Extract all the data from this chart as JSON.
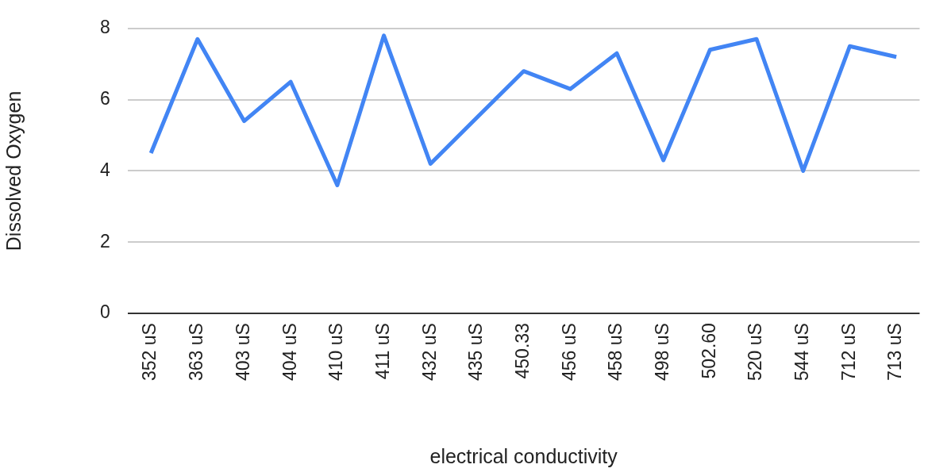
{
  "chart_data": {
    "type": "line",
    "xlabel": "electrical conductivity",
    "ylabel": "Dissolved Oxygen",
    "categories": [
      "352 uS",
      "363 uS",
      "403 uS",
      "404 uS",
      "410 uS",
      "411 uS",
      "432 uS",
      "435 uS",
      "450.33",
      "456 uS",
      "458 uS",
      "498 uS",
      "502.60",
      "520 uS",
      "544 uS",
      "712 uS",
      "713 uS"
    ],
    "series": [
      {
        "color": "#4285f4",
        "values": [
          4.5,
          7.7,
          5.4,
          6.5,
          3.6,
          7.8,
          4.2,
          5.5,
          6.8,
          6.3,
          7.3,
          4.3,
          7.4,
          7.7,
          4.0,
          7.5,
          7.2
        ]
      }
    ],
    "ylim": [
      0,
      8
    ],
    "yticks": [
      0,
      2,
      4,
      6,
      8
    ],
    "grid": "y",
    "legend": false,
    "marker": "none",
    "line_style": "solid"
  }
}
